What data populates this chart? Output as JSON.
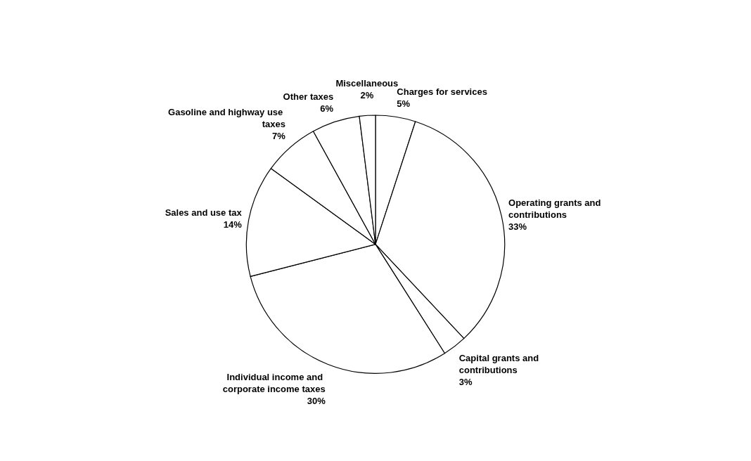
{
  "chart_data": {
    "type": "pie",
    "categories": [
      "Charges for services",
      "Operating grants and contributions",
      "Capital grants and contributions",
      "Individual income and corporate income taxes",
      "Sales and use tax",
      "Gasoline and highway use taxes",
      "Other taxes",
      "Miscellaneous"
    ],
    "values": [
      5,
      33,
      3,
      30,
      14,
      7,
      6,
      2
    ],
    "colors": [
      "#ffffff",
      "#ffffff",
      "#ffffff",
      "#ffffff",
      "#ffffff",
      "#ffffff",
      "#ffffff",
      "#ffffff"
    ],
    "value_labels": [
      "5%",
      "33%",
      "3%",
      "30%",
      "14%",
      "7%",
      "6%",
      "2%"
    ]
  }
}
